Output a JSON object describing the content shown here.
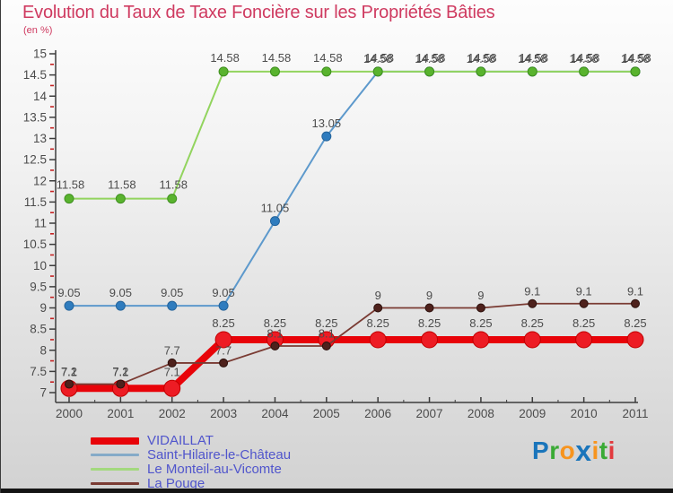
{
  "theme": {
    "title-color": "#cf3a60",
    "legend-color": "#5055cc",
    "axis-color": "#3c3c3c",
    "tick-label-color": "#4c4c4c",
    "minor-tick-color": "#c42323",
    "data-label-color": "#4c4c4c"
  },
  "header": {
    "title": "Evolution du Taux de Taxe Foncière sur les Propriétés Bâties",
    "subtitle": "(en %)"
  },
  "chart_data": {
    "type": "line",
    "x": [
      2000,
      2001,
      2002,
      2003,
      2004,
      2005,
      2006,
      2007,
      2008,
      2009,
      2010,
      2011
    ],
    "ylim": [
      7,
      15
    ],
    "y_major_step": 0.5,
    "y_minor_offset": 0.25,
    "grid": false,
    "legend_position": "bottom-left",
    "series": [
      {
        "name": "VIDAILLAT",
        "color": "#e80309",
        "marker_color": "#ed1c24",
        "marker_stroke": "#c00000",
        "line_width": 8,
        "marker_r": 9,
        "values": [
          7.1,
          7.1,
          7.1,
          8.25,
          8.25,
          8.25,
          8.25,
          8.25,
          8.25,
          8.25,
          8.25,
          8.25
        ]
      },
      {
        "name": "Saint-Hilaire-le-Château",
        "color": "#5d99cc",
        "marker_color": "#2f7cbe",
        "marker_stroke": "#24639a",
        "line_width": 2,
        "marker_r": 5,
        "values": [
          9.05,
          9.05,
          9.05,
          9.05,
          11.05,
          13.05,
          14.58,
          14.58,
          14.58,
          14.58,
          14.58,
          14.58
        ]
      },
      {
        "name": "Le Monteil-au-Vicomte",
        "color": "#92d45e",
        "marker_color": "#59b32e",
        "marker_stroke": "#3f8f1f",
        "line_width": 2,
        "marker_r": 5,
        "label_dx": 1.5,
        "label_dy": -1,
        "values": [
          11.58,
          11.58,
          11.58,
          14.58,
          14.58,
          14.58,
          14.58,
          14.58,
          14.58,
          14.58,
          14.58,
          14.58
        ]
      },
      {
        "name": "La Pouge",
        "color": "#7a3b33",
        "marker_color": "#4e211c",
        "marker_stroke": "#2c100c",
        "line_width": 1.8,
        "marker_r": 4.5,
        "values": [
          7.2,
          7.2,
          7.7,
          7.7,
          8.1,
          8.1,
          9,
          9,
          9,
          9.1,
          9.1,
          9.1
        ]
      }
    ]
  },
  "legend": {
    "items": [
      {
        "label": "VIDAILLAT",
        "color": "#e80309",
        "thickness": 8
      },
      {
        "label": "Saint-Hilaire-le-Château",
        "color": "#85aac8",
        "thickness": 3
      },
      {
        "label": "Le Monteil-au-Vicomte",
        "color": "#a3d97e",
        "thickness": 3
      },
      {
        "label": "La Pouge",
        "color": "#7a3b33",
        "thickness": 3
      }
    ]
  },
  "logo": {
    "letters": [
      {
        "char": "P",
        "color": "#1a75bb"
      },
      {
        "char": "r",
        "color": "#3aaa35"
      },
      {
        "char": "o",
        "color": "#f7941e"
      },
      {
        "char": "x",
        "color": "#1a75bb",
        "big": true
      },
      {
        "char": "i",
        "color": "#f7941e"
      },
      {
        "char": "t",
        "color": "#3aaa35"
      },
      {
        "char": "i",
        "color": "#e23a3e"
      }
    ]
  }
}
